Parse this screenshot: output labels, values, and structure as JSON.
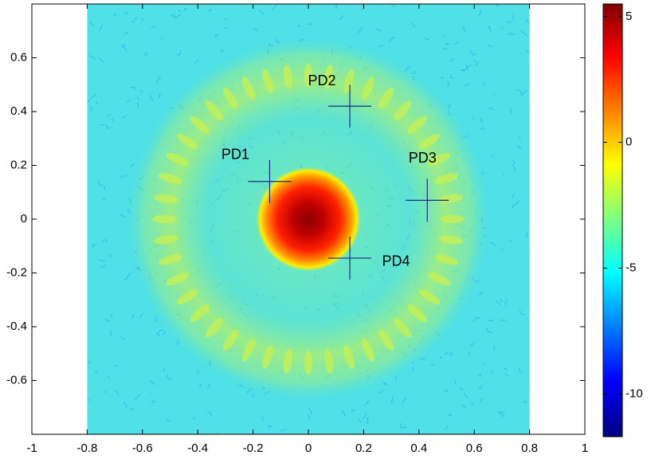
{
  "chart_data": {
    "type": "heatmap",
    "xlim": [
      -1,
      1
    ],
    "ylim": [
      -0.8,
      0.8
    ],
    "xticks": [
      -1,
      -0.8,
      -0.6,
      -0.4,
      -0.2,
      0,
      0.2,
      0.4,
      0.6,
      0.8,
      1
    ],
    "yticks": [
      -0.6,
      -0.4,
      -0.2,
      0,
      0.2,
      0.4,
      0.6
    ],
    "image_extent": [
      -0.8,
      0.8,
      -0.8,
      0.8
    ],
    "clim": [
      -11.7,
      5.5
    ],
    "cticks": [
      5,
      0,
      -5,
      -10
    ],
    "colormap": "jet",
    "markers": [
      {
        "label": "PD1",
        "x": -0.14,
        "y": 0.14
      },
      {
        "label": "PD2",
        "x": 0.15,
        "y": 0.42
      },
      {
        "label": "PD3",
        "x": 0.43,
        "y": 0.07
      },
      {
        "label": "PD4",
        "x": 0.15,
        "y": -0.145
      }
    ]
  }
}
